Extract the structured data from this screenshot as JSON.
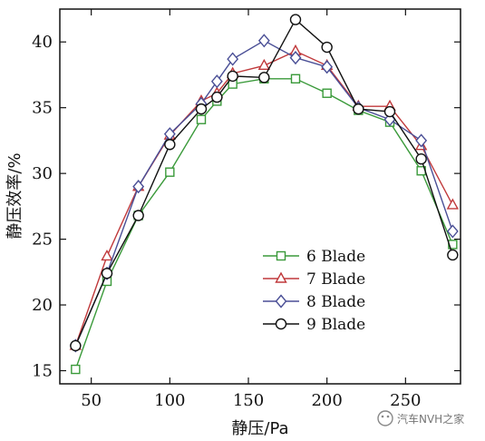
{
  "chart_data": {
    "type": "line",
    "title": "",
    "xlabel": "静压/Pa",
    "ylabel": "静压效率/%",
    "xlim": [
      30,
      285
    ],
    "ylim": [
      14,
      42.5
    ],
    "xticks": [
      50,
      100,
      150,
      200,
      250
    ],
    "yticks": [
      15,
      20,
      25,
      30,
      35,
      40
    ],
    "grid": false,
    "legend_position": "bottom-center",
    "series": [
      {
        "name": "6 Blade",
        "color": "#3a9a3a",
        "marker": "square",
        "x": [
          40,
          60,
          80,
          100,
          120,
          130,
          140,
          160,
          180,
          200,
          220,
          240,
          260,
          280
        ],
        "y": [
          15.1,
          21.8,
          26.8,
          30.1,
          34.1,
          35.5,
          36.8,
          37.2,
          37.2,
          36.1,
          34.8,
          33.9,
          30.2,
          24.6
        ]
      },
      {
        "name": "7 Blade",
        "color": "#c0393b",
        "marker": "triangle",
        "x": [
          40,
          60,
          80,
          100,
          120,
          130,
          140,
          160,
          180,
          200,
          220,
          240,
          260,
          280
        ],
        "y": [
          16.9,
          23.7,
          29.0,
          32.9,
          35.5,
          36.1,
          37.6,
          38.2,
          39.3,
          38.2,
          35.1,
          35.1,
          32.1,
          27.6
        ]
      },
      {
        "name": "8 Blade",
        "color": "#4a4f96",
        "marker": "diamond",
        "x": [
          40,
          60,
          80,
          100,
          120,
          130,
          140,
          160,
          180,
          200,
          220,
          240,
          260,
          280
        ],
        "y": [
          16.9,
          22.4,
          29.0,
          33.0,
          35.3,
          37.0,
          38.7,
          40.1,
          38.8,
          38.1,
          35.0,
          34.1,
          32.5,
          25.6
        ]
      },
      {
        "name": "9 Blade",
        "color": "#111111",
        "marker": "circle",
        "x": [
          40,
          60,
          80,
          100,
          120,
          130,
          140,
          160,
          180,
          200,
          220,
          240,
          260,
          280
        ],
        "y": [
          16.9,
          22.4,
          26.8,
          32.2,
          34.9,
          35.8,
          37.4,
          37.3,
          41.7,
          39.6,
          34.9,
          34.7,
          31.1,
          23.8
        ]
      }
    ]
  },
  "watermark": {
    "text": "汽车NVH之家"
  }
}
